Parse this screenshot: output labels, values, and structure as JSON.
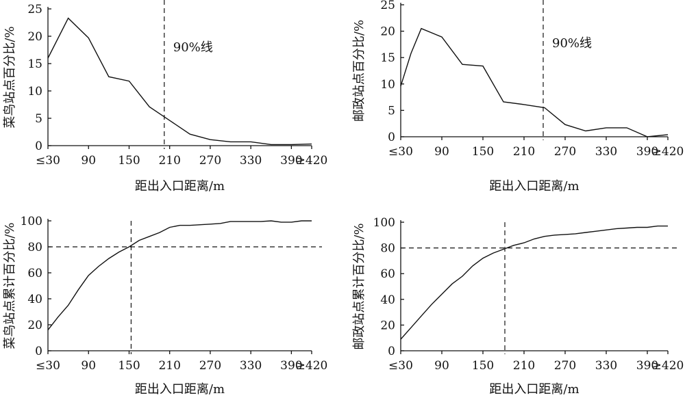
{
  "chart_data": [
    {
      "type": "line",
      "ylabel": "菜鸟站点百分比/%",
      "xlabel": "距出入口距离/m",
      "x_tick_labels": [
        "≤30",
        "90",
        "150",
        "210",
        "270",
        "330",
        "390",
        "≥420"
      ],
      "y_ticks": [
        0,
        5,
        10,
        15,
        20,
        25
      ],
      "ylim": [
        0,
        25
      ],
      "xlim": [
        30,
        420
      ],
      "series": [
        {
          "x": [
            30,
            60,
            90,
            120,
            150,
            180,
            210,
            240,
            270,
            300,
            330,
            360,
            390,
            420
          ],
          "values": [
            16,
            23.3,
            19.7,
            12.6,
            11.8,
            7.1,
            4.6,
            2.1,
            1.1,
            0.7,
            0.7,
            0.2,
            0.2,
            0.3
          ]
        }
      ],
      "reference_lines": [
        {
          "axis": "x",
          "value": 202,
          "label": "90%线"
        }
      ]
    },
    {
      "type": "line",
      "ylabel": "邮政站点百分比/%",
      "xlabel": "距出入口距离/m",
      "x_tick_labels": [
        "≤30",
        "90",
        "150",
        "210",
        "270",
        "330",
        "390",
        "≥420"
      ],
      "y_ticks": [
        0,
        5,
        10,
        15,
        20,
        25
      ],
      "ylim": [
        0,
        25
      ],
      "xlim": [
        30,
        420
      ],
      "series": [
        {
          "x": [
            30,
            45,
            60,
            90,
            120,
            150,
            180,
            210,
            240,
            270,
            300,
            330,
            360,
            390,
            420
          ],
          "values": [
            9.6,
            15.8,
            20.5,
            18.9,
            13.7,
            13.4,
            6.6,
            6.1,
            5.5,
            2.3,
            1.1,
            1.7,
            1.7,
            0,
            0.4
          ]
        }
      ],
      "reference_lines": [
        {
          "axis": "x",
          "value": 238,
          "label": "90%线"
        }
      ]
    },
    {
      "type": "line",
      "ylabel": "菜鸟站点累计百分比/%",
      "xlabel": "距出入口距离/m",
      "x_tick_labels": [
        "≤30",
        "90",
        "150",
        "210",
        "270",
        "330",
        "390",
        "≥420"
      ],
      "y_ticks": [
        0,
        20,
        40,
        60,
        80,
        100
      ],
      "ylim": [
        0,
        100
      ],
      "xlim": [
        30,
        420
      ],
      "series": [
        {
          "x": [
            30,
            45,
            60,
            75,
            90,
            105,
            120,
            135,
            150,
            165,
            180,
            195,
            210,
            225,
            240,
            255,
            270,
            285,
            300,
            315,
            330,
            345,
            360,
            375,
            390,
            405,
            420
          ],
          "values": [
            16,
            26,
            35,
            47,
            58,
            65,
            71,
            76,
            80,
            85,
            88,
            91,
            95,
            96.5,
            96.5,
            97,
            97.5,
            98,
            99.5,
            99.5,
            99.5,
            99.5,
            100,
            99,
            99,
            100,
            100
          ]
        }
      ],
      "reference_lines": [
        {
          "axis": "y",
          "value": 80
        },
        {
          "axis": "x",
          "value": 153
        }
      ]
    },
    {
      "type": "line",
      "ylabel": "邮政站点累计百分比/%",
      "xlabel": "距出入口距离/m",
      "x_tick_labels": [
        "≤30",
        "90",
        "150",
        "210",
        "270",
        "330",
        "390",
        "≥420"
      ],
      "y_ticks": [
        0,
        20,
        40,
        60,
        80,
        100
      ],
      "ylim": [
        0,
        100
      ],
      "xlim": [
        30,
        420
      ],
      "series": [
        {
          "x": [
            30,
            45,
            60,
            75,
            90,
            105,
            120,
            135,
            150,
            165,
            180,
            195,
            210,
            225,
            240,
            255,
            270,
            285,
            300,
            315,
            330,
            345,
            360,
            375,
            390,
            405,
            420
          ],
          "values": [
            9,
            18,
            27,
            36,
            44,
            52,
            58,
            66,
            72,
            76,
            79,
            82,
            84,
            87,
            89,
            90,
            90.5,
            91,
            92,
            93,
            94,
            95,
            95.5,
            96,
            96,
            97,
            97
          ]
        }
      ],
      "reference_lines": [
        {
          "axis": "y",
          "value": 80
        },
        {
          "axis": "x",
          "value": 182
        }
      ]
    }
  ]
}
